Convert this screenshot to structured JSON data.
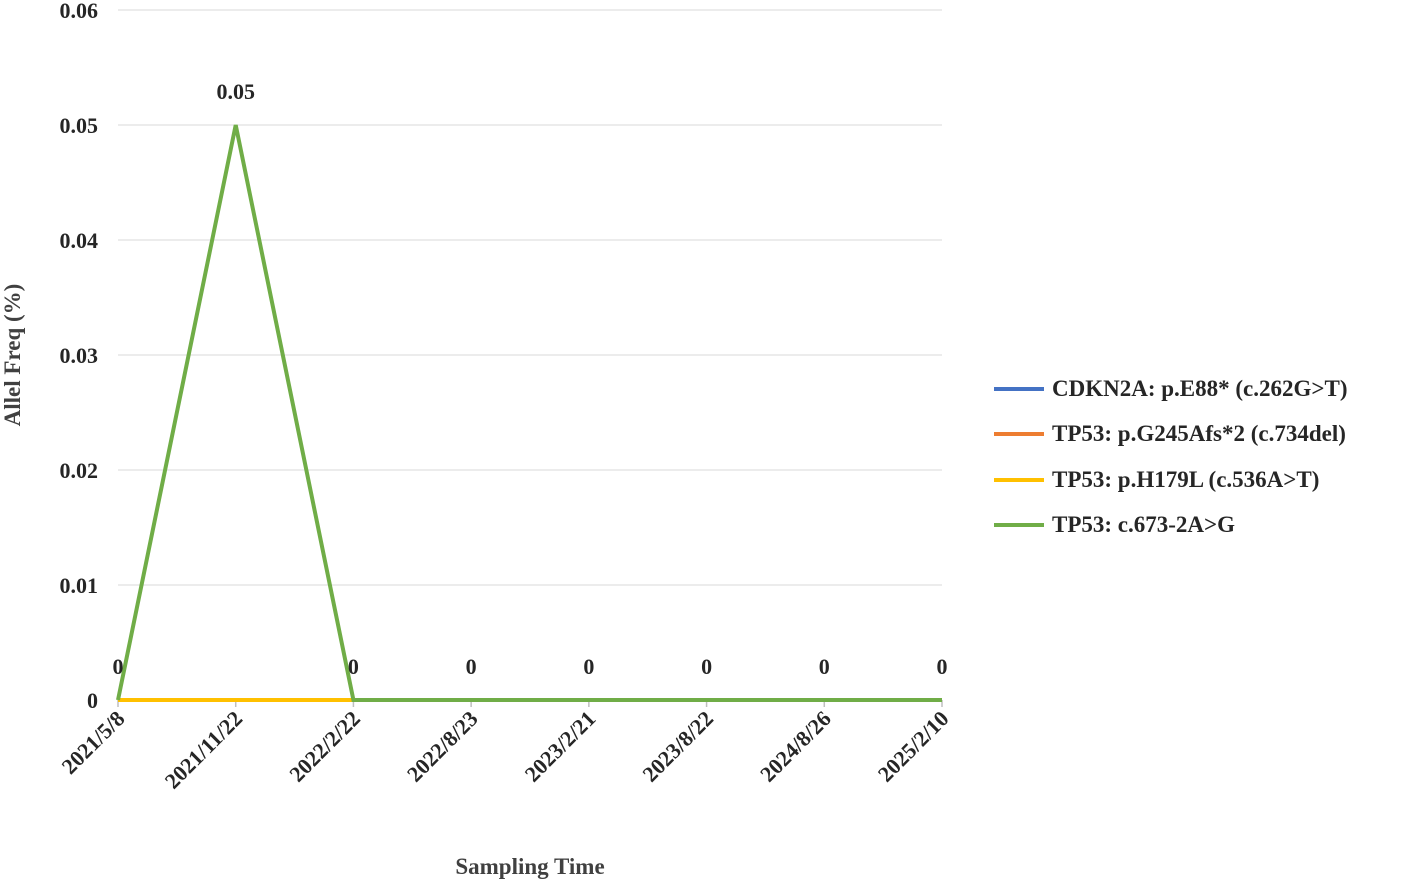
{
  "chart_data": {
    "type": "line",
    "xlabel": "Sampling Time",
    "ylabel": "Allel Freq (%)",
    "categories": [
      "2021/5/8",
      "2021/11/22",
      "2022/2/22",
      "2022/8/23",
      "2023/2/21",
      "2023/8/22",
      "2024/8/26",
      "2025/2/10"
    ],
    "ylim": [
      0,
      0.06
    ],
    "yticks": [
      "0",
      "0.01",
      "0.02",
      "0.03",
      "0.04",
      "0.05",
      "0.06"
    ],
    "grid": "horizontal",
    "legend_position": "right",
    "series": [
      {
        "name": "CDKN2A: p.E88* (c.262G>T)",
        "color": "#4472c4",
        "values": [
          0,
          0,
          0,
          null,
          null,
          null,
          null,
          null
        ]
      },
      {
        "name": "TP53: p.G245Afs*2 (c.734del)",
        "color": "#ed7d31",
        "values": [
          0,
          0,
          0,
          null,
          null,
          null,
          null,
          null
        ]
      },
      {
        "name": "TP53: p.H179L (c.536A>T)",
        "color": "#ffc000",
        "values": [
          0,
          0,
          0,
          null,
          null,
          null,
          null,
          null
        ]
      },
      {
        "name": "TP53: c.673-2A>G",
        "color": "#70ad47",
        "values": [
          0,
          0.05,
          0,
          0,
          0,
          0,
          0,
          0
        ]
      }
    ],
    "data_labels": [
      "0",
      "0.05",
      "0",
      "0",
      "0",
      "0",
      "0",
      "0"
    ]
  }
}
